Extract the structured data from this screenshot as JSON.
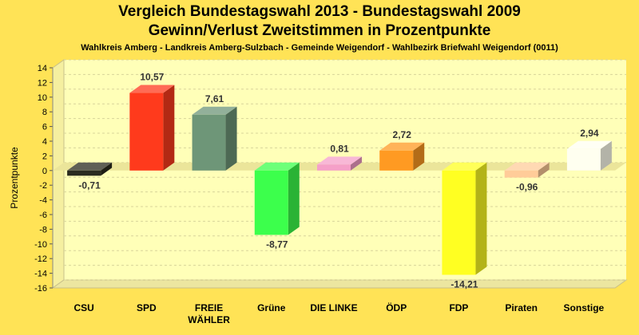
{
  "chart_data": {
    "type": "bar",
    "title": "Vergleich Bundestagswahl 2013 - Bundestagswahl 2009",
    "subtitle": "Gewinn/Verlust Zweitstimmen in Prozentpunkte",
    "caption": "Wahlkreis Amberg - Landkreis Amberg-Sulzbach - Gemeinde Weigendorf - Wahlbezirk Briefwahl Weigendorf (0011)",
    "ylabel": "Prozentpunkte",
    "xlabel": "",
    "ylim": [
      -16,
      14
    ],
    "yticks": [
      "14",
      "12",
      "10",
      "8",
      "6",
      "4",
      "2",
      "0",
      "-2",
      "-4",
      "-6",
      "-8",
      "-10",
      "-12",
      "-14",
      "-16"
    ],
    "grid": true,
    "categories": [
      "CSU",
      "SPD",
      "FREIE WÄHLER",
      "Grüne",
      "DIE LINKE",
      "ÖDP",
      "FDP",
      "Piraten",
      "Sonstige"
    ],
    "values": [
      -0.71,
      10.57,
      7.61,
      -8.77,
      0.81,
      2.72,
      -14.21,
      -0.96,
      2.94
    ],
    "value_labels": [
      "-0,71",
      "10,57",
      "7,61",
      "-8,77",
      "0,81",
      "2,72",
      "-14,21",
      "-0,96",
      "2,94"
    ],
    "colors": [
      "#2b2b1e",
      "#ff3a1c",
      "#6e9678",
      "#3cff4c",
      "#f5a0c8",
      "#ff9a22",
      "#ffff22",
      "#ffcc99",
      "#fffff0"
    ]
  }
}
